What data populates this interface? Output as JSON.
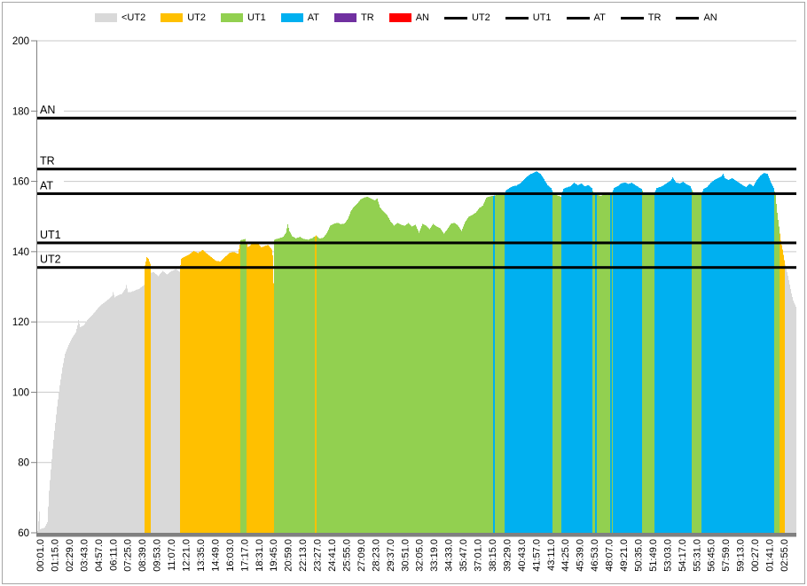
{
  "chart_data": {
    "type": "bar",
    "title": "",
    "y_axis": {
      "min": 60,
      "max": 200,
      "ticks": [
        200,
        180,
        160,
        140,
        120,
        100,
        80,
        60
      ]
    },
    "x_axis": {
      "tick_labels": [
        "00:01.0",
        "01:15.0",
        "02:29.0",
        "03:43.0",
        "04:57.0",
        "06:11.0",
        "07:25.0",
        "08:39.0",
        "09:53.0",
        "11:07.0",
        "12:21.0",
        "13:35.0",
        "14:49.0",
        "16:03.0",
        "17:17.0",
        "18:31.0",
        "19:45.0",
        "20:59.0",
        "22:13.0",
        "23:27.0",
        "24:41.0",
        "25:55.0",
        "27:09.0",
        "28:23.0",
        "29:37.0",
        "30:51.0",
        "32:05.0",
        "33:19.0",
        "34:33.0",
        "35:47.0",
        "37:01.0",
        "38:15.0",
        "39:29.0",
        "40:43.0",
        "41:57.0",
        "43:11.0",
        "44:25.0",
        "45:39.0",
        "46:53.0",
        "48:07.0",
        "49:21.0",
        "50:35.0",
        "51:49.0",
        "53:03.0",
        "54:17.0",
        "55:31.0",
        "56:45.0",
        "57:59.0",
        "59:13.0",
        "00:27.0",
        "01:41.0",
        "02:55.0"
      ]
    },
    "legend": {
      "fill_series": [
        {
          "key": "lt",
          "label": "<UT2",
          "color": "#d9d9d9"
        },
        {
          "key": "ut2",
          "label": "UT2",
          "color": "#ffc000"
        },
        {
          "key": "ut1",
          "label": "UT1",
          "color": "#92d050"
        },
        {
          "key": "at",
          "label": "AT",
          "color": "#00b0f0"
        },
        {
          "key": "tr",
          "label": "TR",
          "color": "#7030a0"
        },
        {
          "key": "an",
          "label": "AN",
          "color": "#ff0000"
        }
      ],
      "line_series": [
        {
          "label": "UT2"
        },
        {
          "label": "UT1"
        },
        {
          "label": "AT"
        },
        {
          "label": "TR"
        },
        {
          "label": "AN"
        }
      ],
      "line_color": "#000000"
    },
    "threshold_lines": [
      {
        "label": "AN",
        "value": 178.0
      },
      {
        "label": "TR",
        "value": 163.5
      },
      {
        "label": "AT",
        "value": 156.5
      },
      {
        "label": "UT1",
        "value": 142.5
      },
      {
        "label": "UT2",
        "value": 135.5
      }
    ],
    "series_profile": {
      "samples": 856,
      "envelope": [
        [
          0,
          60.5
        ],
        [
          2,
          66
        ],
        [
          3,
          61
        ],
        [
          8,
          61.5
        ],
        [
          11,
          63
        ],
        [
          13,
          72
        ],
        [
          15,
          78
        ],
        [
          17,
          84
        ],
        [
          19,
          89
        ],
        [
          22,
          96
        ],
        [
          25,
          102
        ],
        [
          28,
          107
        ],
        [
          31,
          111
        ],
        [
          35,
          113.5
        ],
        [
          39,
          115.5
        ],
        [
          43,
          117
        ],
        [
          45,
          119
        ],
        [
          46,
          120.5
        ],
        [
          48,
          118.5
        ],
        [
          52,
          119
        ],
        [
          56,
          120.5
        ],
        [
          60,
          121.5
        ],
        [
          65,
          123
        ],
        [
          70,
          124.5
        ],
        [
          75,
          125.5
        ],
        [
          80,
          126.5
        ],
        [
          84,
          127.5
        ],
        [
          85,
          128.5
        ],
        [
          87,
          127
        ],
        [
          90,
          127.5
        ],
        [
          95,
          128
        ],
        [
          99,
          129.5
        ],
        [
          100,
          130.5
        ],
        [
          102,
          128.5
        ],
        [
          105,
          128.5
        ],
        [
          110,
          129
        ],
        [
          115,
          129.5
        ],
        [
          120,
          130.5
        ],
        [
          121,
          136
        ],
        [
          123,
          138.5
        ],
        [
          125,
          138
        ],
        [
          127,
          136.5
        ],
        [
          128,
          134
        ],
        [
          131,
          134.2
        ],
        [
          136,
          133
        ],
        [
          141,
          134.5
        ],
        [
          146,
          133.5
        ],
        [
          151,
          134.5
        ],
        [
          156,
          135
        ],
        [
          160,
          134.3
        ],
        [
          162,
          138
        ],
        [
          166,
          138.6
        ],
        [
          171,
          139.2
        ],
        [
          176,
          140.2
        ],
        [
          181,
          139.6
        ],
        [
          186,
          140.5
        ],
        [
          191,
          139.4
        ],
        [
          196,
          138.4
        ],
        [
          201,
          137.4
        ],
        [
          206,
          137.2
        ],
        [
          211,
          138.4
        ],
        [
          216,
          139.6
        ],
        [
          221,
          139.9
        ],
        [
          226,
          139.4
        ],
        [
          229,
          143.3
        ],
        [
          234,
          143.6
        ],
        [
          237,
          141.4
        ],
        [
          240,
          141.8
        ],
        [
          244,
          142.8
        ],
        [
          248,
          142.6
        ],
        [
          252,
          141.2
        ],
        [
          256,
          141.6
        ],
        [
          260,
          141.9
        ],
        [
          264,
          140.6
        ],
        [
          265,
          139
        ],
        [
          266,
          131
        ],
        [
          267,
          143.4
        ],
        [
          272,
          143.8
        ],
        [
          277,
          144.2
        ],
        [
          280,
          145.4
        ],
        [
          282,
          147.8
        ],
        [
          284,
          145.8
        ],
        [
          287,
          144.4
        ],
        [
          291,
          143.8
        ],
        [
          296,
          144.2
        ],
        [
          300,
          143.6
        ],
        [
          305,
          143.4
        ],
        [
          310,
          143.9
        ],
        [
          314,
          144.6
        ],
        [
          318,
          143.7
        ],
        [
          322,
          144
        ],
        [
          326,
          145.2
        ],
        [
          330,
          147.4
        ],
        [
          334,
          147.9
        ],
        [
          338,
          148.2
        ],
        [
          342,
          147.8
        ],
        [
          346,
          148
        ],
        [
          350,
          149.4
        ],
        [
          353,
          151.4
        ],
        [
          356,
          152.6
        ],
        [
          360,
          153.6
        ],
        [
          364,
          154.8
        ],
        [
          368,
          155.4
        ],
        [
          372,
          155.6
        ],
        [
          376,
          155.1
        ],
        [
          380,
          154.6
        ],
        [
          383,
          155.1
        ],
        [
          386,
          152.6
        ],
        [
          390,
          151.4
        ],
        [
          394,
          150.4
        ],
        [
          398,
          148.6
        ],
        [
          402,
          147.4
        ],
        [
          406,
          148.2
        ],
        [
          410,
          147.6
        ],
        [
          414,
          147.4
        ],
        [
          418,
          148.1
        ],
        [
          422,
          147.1
        ],
        [
          426,
          147.7
        ],
        [
          430,
          145.4
        ],
        [
          434,
          147.9
        ],
        [
          438,
          147.4
        ],
        [
          442,
          146.4
        ],
        [
          446,
          147.9
        ],
        [
          450,
          147.1
        ],
        [
          454,
          146.7
        ],
        [
          458,
          145.1
        ],
        [
          462,
          146.4
        ],
        [
          466,
          147.9
        ],
        [
          470,
          148.2
        ],
        [
          474,
          147.4
        ],
        [
          478,
          145.9
        ],
        [
          482,
          148.4
        ],
        [
          486,
          149.9
        ],
        [
          490,
          150.4
        ],
        [
          494,
          151.1
        ],
        [
          498,
          152.4
        ],
        [
          502,
          153.1
        ],
        [
          506,
          155.4
        ],
        [
          510,
          155.7
        ],
        [
          514,
          155.9
        ],
        [
          518,
          156.1
        ],
        [
          522,
          156.3
        ],
        [
          526,
          156.4
        ],
        [
          528,
          157.4
        ],
        [
          532,
          158.1
        ],
        [
          536,
          158.6
        ],
        [
          540,
          158.8
        ],
        [
          544,
          159.4
        ],
        [
          548,
          160.4
        ],
        [
          552,
          161.4
        ],
        [
          556,
          162.1
        ],
        [
          560,
          162.6
        ],
        [
          563,
          162.8
        ],
        [
          567,
          162.1
        ],
        [
          571,
          160.6
        ],
        [
          575,
          158.9
        ],
        [
          579,
          158.1
        ],
        [
          582,
          156.4
        ],
        [
          586,
          156
        ],
        [
          590,
          155.6
        ],
        [
          593,
          157.9
        ],
        [
          597,
          158.3
        ],
        [
          601,
          158.6
        ],
        [
          605,
          159.6
        ],
        [
          609,
          158.9
        ],
        [
          613,
          159.4
        ],
        [
          617,
          158.6
        ],
        [
          621,
          158.9
        ],
        [
          625,
          158.1
        ],
        [
          627,
          156.4
        ],
        [
          631,
          156.1
        ],
        [
          635,
          155.9
        ],
        [
          639,
          156.3
        ],
        [
          643,
          156.1
        ],
        [
          647,
          156.4
        ],
        [
          650,
          158.1
        ],
        [
          654,
          158.6
        ],
        [
          658,
          159.4
        ],
        [
          662,
          159.7
        ],
        [
          666,
          159.3
        ],
        [
          670,
          159.6
        ],
        [
          674,
          158.9
        ],
        [
          678,
          158.3
        ],
        [
          681,
          157.9
        ],
        [
          684,
          156.4
        ],
        [
          688,
          156.2
        ],
        [
          692,
          156.4
        ],
        [
          695,
          156.4
        ],
        [
          698,
          158.1
        ],
        [
          702,
          158.4
        ],
        [
          706,
          158.9
        ],
        [
          710,
          159.6
        ],
        [
          714,
          160.3
        ],
        [
          716,
          161.1
        ],
        [
          720,
          159.7
        ],
        [
          724,
          159.4
        ],
        [
          728,
          159.9
        ],
        [
          732,
          159.1
        ],
        [
          736,
          158.6
        ],
        [
          740,
          156.4
        ],
        [
          744,
          156.3
        ],
        [
          748,
          156.1
        ],
        [
          751,
          157.9
        ],
        [
          755,
          158.4
        ],
        [
          759,
          159.6
        ],
        [
          763,
          160.4
        ],
        [
          767,
          160.9
        ],
        [
          771,
          161.4
        ],
        [
          773,
          162.1
        ],
        [
          775,
          160.9
        ],
        [
          779,
          160.4
        ],
        [
          783,
          160.9
        ],
        [
          787,
          160.3
        ],
        [
          791,
          159.6
        ],
        [
          795,
          158.9
        ],
        [
          799,
          158.4
        ],
        [
          803,
          159.3
        ],
        [
          807,
          158.6
        ],
        [
          811,
          160.4
        ],
        [
          815,
          161.6
        ],
        [
          819,
          162.4
        ],
        [
          823,
          162.1
        ],
        [
          827,
          159.6
        ],
        [
          830,
          158.1
        ],
        [
          832,
          156.1
        ],
        [
          834,
          151.1
        ],
        [
          836,
          147.1
        ],
        [
          838,
          143.1
        ],
        [
          840,
          140.6
        ],
        [
          842,
          137.6
        ],
        [
          844,
          135.1
        ],
        [
          846,
          133.1
        ],
        [
          848,
          130.6
        ],
        [
          850,
          128.1
        ],
        [
          852,
          126.1
        ],
        [
          855,
          124.3
        ]
      ],
      "regions": [
        {
          "from": 0,
          "to": 121,
          "key": "lt"
        },
        {
          "from": 121,
          "to": 128,
          "key": "ut2"
        },
        {
          "from": 128,
          "to": 161,
          "key": "lt"
        },
        {
          "from": 161,
          "to": 229,
          "key": "ut2"
        },
        {
          "from": 229,
          "to": 236,
          "key": "ut1"
        },
        {
          "from": 236,
          "to": 267,
          "key": "ut2"
        },
        {
          "from": 267,
          "to": 313,
          "key": "ut1"
        },
        {
          "from": 313,
          "to": 315,
          "key": "ut2"
        },
        {
          "from": 315,
          "to": 514,
          "key": "ut1"
        },
        {
          "from": 514,
          "to": 516,
          "key": "at"
        },
        {
          "from": 516,
          "to": 527,
          "key": "ut1"
        },
        {
          "from": 527,
          "to": 581,
          "key": "at"
        },
        {
          "from": 581,
          "to": 591,
          "key": "ut1"
        },
        {
          "from": 591,
          "to": 626,
          "key": "at"
        },
        {
          "from": 626,
          "to": 629,
          "key": "ut1"
        },
        {
          "from": 629,
          "to": 631,
          "key": "at"
        },
        {
          "from": 631,
          "to": 646,
          "key": "ut1"
        },
        {
          "from": 646,
          "to": 648,
          "key": "at"
        },
        {
          "from": 648,
          "to": 649,
          "key": "ut1"
        },
        {
          "from": 649,
          "to": 682,
          "key": "at"
        },
        {
          "from": 682,
          "to": 696,
          "key": "ut1"
        },
        {
          "from": 696,
          "to": 738,
          "key": "at"
        },
        {
          "from": 738,
          "to": 749,
          "key": "ut1"
        },
        {
          "from": 749,
          "to": 831,
          "key": "at"
        },
        {
          "from": 831,
          "to": 837,
          "key": "ut1"
        },
        {
          "from": 837,
          "to": 843,
          "key": "ut2"
        },
        {
          "from": 843,
          "to": 856,
          "key": "lt"
        }
      ]
    }
  },
  "colors": {
    "gridline": "#c9c9c9",
    "axis": "#808080",
    "text": "#000000",
    "threshold_line": "#000000",
    "frame_border": "#a6a6a6",
    "background": "#ffffff"
  }
}
